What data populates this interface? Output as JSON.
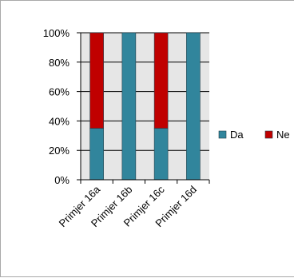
{
  "chart_data": {
    "type": "bar",
    "stacked": true,
    "percent_stacked": true,
    "categories": [
      "Primjer 16a",
      "Primjer 16b",
      "Primjer 16c",
      "Primjer 16d"
    ],
    "series": [
      {
        "name": "Da",
        "values": [
          35,
          100,
          35,
          100
        ],
        "color": "#31859c"
      },
      {
        "name": "Ne",
        "values": [
          65,
          0,
          65,
          0
        ],
        "color": "#c00000"
      }
    ],
    "y_ticks": [
      "0%",
      "20%",
      "40%",
      "60%",
      "80%",
      "100%"
    ],
    "ylim": [
      0,
      100
    ],
    "grid": true,
    "legend_position": "right",
    "plot_background": "#e6e6e6",
    "gridline_color": "#000000"
  }
}
